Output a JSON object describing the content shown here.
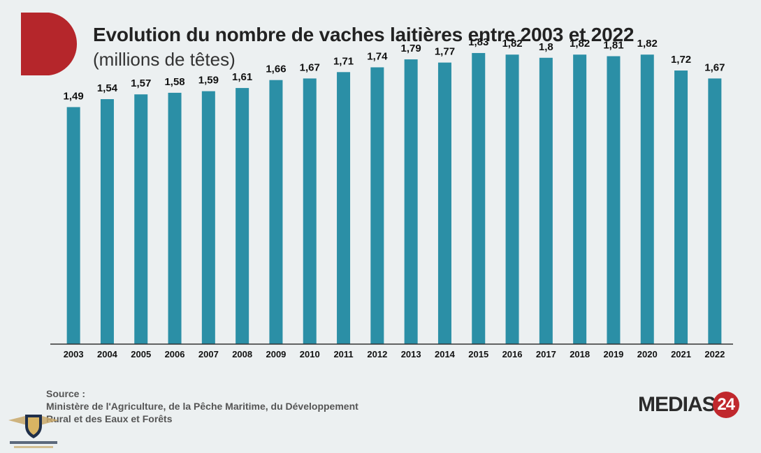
{
  "header": {
    "title": "Evolution du nombre de vaches laitières entre 2003 et 2022",
    "subtitle": "(millions de têtes)"
  },
  "source": {
    "label": "Source :",
    "line1": "Ministère de l'Agriculture, de la Pêche Maritime, du Développement",
    "line2": "Rural et des Eaux et Forêts"
  },
  "logo": {
    "text": "MEDIAS",
    "badge": "24"
  },
  "colors": {
    "bar": "#2b8fa6",
    "brand_red": "#c0282d",
    "axis": "#333333"
  },
  "chart_data": {
    "type": "bar",
    "title": "Evolution du nombre de vaches laitières entre 2003 et 2022",
    "subtitle": "(millions de têtes)",
    "xlabel": "",
    "ylabel": "",
    "categories": [
      "2003",
      "2004",
      "2005",
      "2006",
      "2007",
      "2008",
      "2009",
      "2010",
      "2011",
      "2012",
      "2013",
      "2014",
      "2015",
      "2016",
      "2017",
      "2018",
      "2019",
      "2020",
      "2021",
      "2022"
    ],
    "values": [
      1.49,
      1.54,
      1.57,
      1.58,
      1.59,
      1.61,
      1.66,
      1.67,
      1.71,
      1.74,
      1.79,
      1.77,
      1.83,
      1.82,
      1.8,
      1.82,
      1.81,
      1.82,
      1.72,
      1.67
    ],
    "value_labels": [
      "1,49",
      "1,54",
      "1,57",
      "1,58",
      "1,59",
      "1,61",
      "1,66",
      "1,67",
      "1,71",
      "1,74",
      "1,79",
      "1,77",
      "1,83",
      "1,82",
      "1,8",
      "1,82",
      "1,81",
      "1,82",
      "1,72",
      "1,67"
    ],
    "ylim": [
      0,
      1.9
    ],
    "grid": false,
    "legend": "none"
  }
}
